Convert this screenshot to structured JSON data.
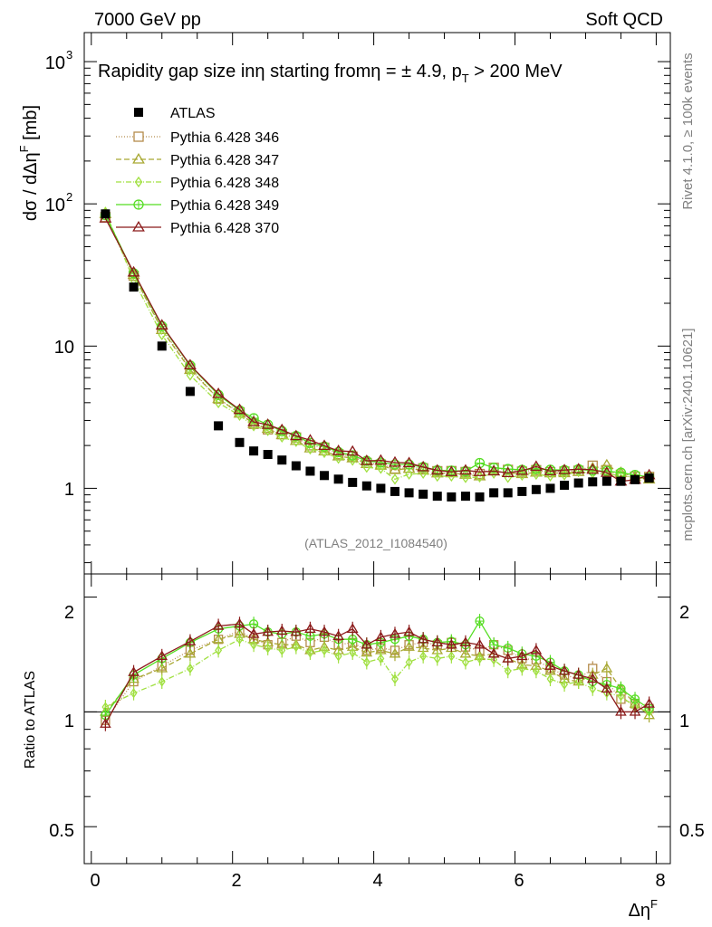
{
  "header": {
    "left": "7000 GeV pp",
    "right": "Soft QCD"
  },
  "side_labels": {
    "rivet": "Rivet 4.1.0, ≥ 100k events",
    "mcplots": "mcplots.cern.ch [arXiv:2401.10621]"
  },
  "chart_data": {
    "type": "scatter",
    "title": "Rapidity gap size inη starting fromη = ± 4.9, p_T > 200 MeV",
    "title_main": "Rapidity gap size inη starting fromη = ± 4.9, p",
    "title_sub": "T",
    "title_end": " > 200 MeV",
    "analysis_id": "(ATLAS_2012_I1084540)",
    "xlabel": "Δη",
    "xlabel_sup": "F",
    "ylabel": "dσ / dΔη",
    "ylabel_sup": "F",
    "ylabel_unit": " [mb]",
    "ratio_ylabel": "Ratio to ATLAS",
    "xlim": [
      -0.1,
      8.2
    ],
    "ylim": [
      0.25,
      1600
    ],
    "ratio_ylim": [
      0.4,
      2.3
    ],
    "x_ticks": [
      "0",
      "2",
      "4",
      "6",
      "8"
    ],
    "y_tick_labels": {
      "y1": "1",
      "y10": "10",
      "y100_base": "10",
      "y100_exp": "2",
      "y1000_base": "10",
      "y1000_exp": "3"
    },
    "ratio_tick_labels": [
      "0.5",
      "1",
      "2"
    ],
    "x": [
      0.2,
      0.6,
      1.0,
      1.4,
      1.8,
      2.1,
      2.3,
      2.5,
      2.7,
      2.9,
      3.1,
      3.3,
      3.5,
      3.7,
      3.9,
      4.1,
      4.3,
      4.5,
      4.7,
      4.9,
      5.1,
      5.3,
      5.5,
      5.7,
      5.9,
      6.1,
      6.3,
      6.5,
      6.7,
      6.9,
      7.1,
      7.3,
      7.5,
      7.7,
      7.9
    ],
    "data": {
      "name": "ATLAS",
      "values": [
        85,
        26,
        10,
        4.8,
        2.75,
        2.1,
        1.83,
        1.73,
        1.58,
        1.44,
        1.32,
        1.23,
        1.16,
        1.1,
        1.04,
        1.0,
        0.95,
        0.93,
        0.91,
        0.88,
        0.87,
        0.88,
        0.87,
        0.93,
        0.93,
        0.95,
        0.98,
        1.0,
        1.05,
        1.09,
        1.11,
        1.12,
        1.12,
        1.15,
        1.18
      ]
    },
    "series": [
      {
        "name": "Pythia 6.428 346",
        "color": "#b58c4c",
        "marker": "open-square",
        "dash": "1,2",
        "ratio": [
          0.95,
          1.2,
          1.32,
          1.45,
          1.55,
          1.63,
          1.55,
          1.5,
          1.52,
          1.58,
          1.52,
          1.57,
          1.5,
          1.52,
          1.45,
          1.47,
          1.45,
          1.5,
          1.52,
          1.5,
          1.52,
          1.48,
          1.45,
          1.5,
          1.45,
          1.38,
          1.37,
          1.3,
          1.25,
          1.22,
          1.3,
          1.2,
          1.08,
          1.05,
          1.02
        ]
      },
      {
        "name": "Pythia 6.428 347",
        "color": "#a8a832",
        "marker": "open-triangle",
        "dash": "6,3",
        "ratio": [
          1.0,
          1.22,
          1.3,
          1.42,
          1.55,
          1.6,
          1.55,
          1.52,
          1.5,
          1.5,
          1.45,
          1.48,
          1.45,
          1.48,
          1.43,
          1.45,
          1.42,
          1.48,
          1.47,
          1.45,
          1.47,
          1.42,
          1.4,
          1.42,
          1.38,
          1.33,
          1.32,
          1.28,
          1.22,
          1.2,
          1.25,
          1.3,
          1.15,
          1.05,
          0.98
        ]
      },
      {
        "name": "Pythia 6.428 348",
        "color": "#a0e040",
        "marker": "open-diamond",
        "dash": "6,2,1,2",
        "ratio": [
          1.03,
          1.12,
          1.2,
          1.3,
          1.45,
          1.55,
          1.5,
          1.47,
          1.45,
          1.48,
          1.43,
          1.45,
          1.4,
          1.43,
          1.35,
          1.38,
          1.22,
          1.35,
          1.4,
          1.38,
          1.4,
          1.35,
          1.38,
          1.37,
          1.28,
          1.3,
          1.28,
          1.22,
          1.18,
          1.2,
          1.15,
          1.12,
          1.1,
          1.03,
          1.0
        ]
      },
      {
        "name": "Pythia 6.428 349",
        "color": "#55dd22",
        "marker": "open-circle-cross",
        "dash": "",
        "ratio": [
          0.98,
          1.25,
          1.38,
          1.52,
          1.65,
          1.68,
          1.7,
          1.62,
          1.6,
          1.62,
          1.58,
          1.6,
          1.55,
          1.55,
          1.5,
          1.52,
          1.55,
          1.58,
          1.55,
          1.52,
          1.53,
          1.5,
          1.73,
          1.5,
          1.47,
          1.42,
          1.4,
          1.35,
          1.28,
          1.25,
          1.2,
          1.18,
          1.15,
          1.08,
          1.02
        ]
      },
      {
        "name": "Pythia 6.428 370",
        "color": "#8b1a1a",
        "marker": "open-triangle",
        "dash": "",
        "ratio": [
          0.93,
          1.27,
          1.4,
          1.53,
          1.68,
          1.7,
          1.6,
          1.62,
          1.63,
          1.62,
          1.65,
          1.62,
          1.58,
          1.65,
          1.5,
          1.57,
          1.6,
          1.62,
          1.55,
          1.52,
          1.5,
          1.52,
          1.5,
          1.42,
          1.38,
          1.4,
          1.45,
          1.32,
          1.28,
          1.25,
          1.22,
          1.15,
          1.0,
          1.0,
          1.05
        ]
      }
    ]
  }
}
